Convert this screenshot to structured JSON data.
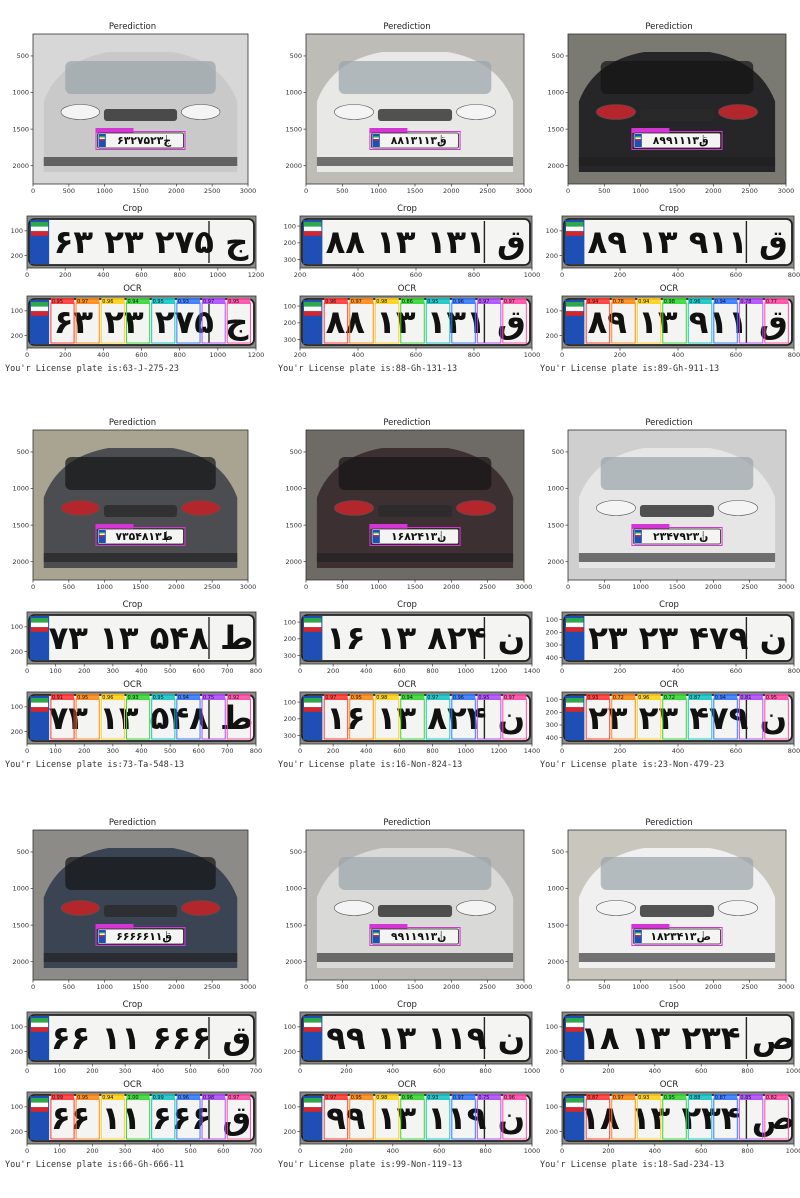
{
  "titles": {
    "prediction": "Perediction",
    "crop": "Crop",
    "ocr": "OCR"
  },
  "result_prefix": "You'r License plate is:",
  "plates": [
    {
      "result": "63-J-275-23",
      "car": "#c9c9c9",
      "bg": "#d7d7d7",
      "dark": false,
      "pred_text": "۶۳ج۲۷۵۲۳",
      "crop_text": "۶۳ ج ۲۷۵ ۲۳",
      "pred_xticks": [
        "0",
        "500",
        "1000",
        "1500",
        "2000",
        "2500",
        "3000"
      ],
      "pred_yticks": [
        "500",
        "1000",
        "1500",
        "2000"
      ],
      "crop_xticks": [
        "0",
        "200",
        "400",
        "600",
        "800",
        "1000",
        "1200"
      ],
      "crop_yticks": [
        "100",
        "200"
      ],
      "ocr_yticks": [
        "100",
        "200"
      ],
      "ocr_scores": [
        "0.95",
        "0.97",
        "0.96",
        "0.94",
        "0.95",
        "0.93",
        "0.97",
        "0.95"
      ]
    },
    {
      "result": "88-Gh-131-13",
      "car": "#e8e8e6",
      "bg": "#bdbcb6",
      "dark": false,
      "pred_text": "۸۸ق۱۳۱۱۳",
      "crop_text": "۸۸ ق ۱۳۱ ۱۳",
      "pred_xticks": [
        "0",
        "500",
        "1000",
        "1500",
        "2000",
        "2500",
        "3000"
      ],
      "pred_yticks": [
        "500",
        "1000",
        "1500",
        "2000"
      ],
      "crop_xticks": [
        "200",
        "400",
        "600",
        "800",
        "1000"
      ],
      "crop_yticks": [
        "100",
        "200",
        "300"
      ],
      "ocr_yticks": [
        "100",
        "200",
        "300"
      ],
      "ocr_scores": [
        "0.96",
        "0.97",
        "0.98",
        "0.86",
        "0.95",
        "0.96",
        "0.97",
        "0.97"
      ]
    },
    {
      "result": "89-Gh-911-13",
      "car": "#262628",
      "bg": "#7a7a72",
      "dark": true,
      "pred_text": "۸۹ق۹۱۱۱۳",
      "crop_text": "۸۹ ق ۹۱۱ ۱۳",
      "pred_xticks": [
        "0",
        "500",
        "1000",
        "1500",
        "2000",
        "2500",
        "3000"
      ],
      "pred_yticks": [
        "500",
        "1000",
        "1500",
        "2000"
      ],
      "crop_xticks": [
        "0",
        "200",
        "400",
        "600",
        "800"
      ],
      "crop_yticks": [
        "100",
        "200"
      ],
      "ocr_yticks": [
        "100",
        "200"
      ],
      "ocr_scores": [
        "0.94",
        "0.78",
        "0.94",
        "0.98",
        "0.96",
        "0.94",
        "0.78",
        "0.77"
      ]
    },
    {
      "result": "73-Ta-548-13",
      "car": "#4b4d50",
      "bg": "#a9a391",
      "dark": true,
      "pred_text": "۷۳ط۵۴۸۱۳",
      "crop_text": "۷۳ ط ۵۴۸ ۱۳",
      "pred_xticks": [
        "0",
        "500",
        "1000",
        "1500",
        "2000",
        "2500",
        "3000"
      ],
      "pred_yticks": [
        "500",
        "1000",
        "1500",
        "2000"
      ],
      "crop_xticks": [
        "0",
        "100",
        "200",
        "300",
        "400",
        "500",
        "600",
        "700",
        "800"
      ],
      "crop_yticks": [
        "100",
        "200"
      ],
      "ocr_yticks": [
        "100",
        "200"
      ],
      "ocr_scores": [
        "0.91",
        "0.95",
        "0.96",
        "0.93",
        "0.95",
        "0.94",
        "0.75",
        "0.92"
      ]
    },
    {
      "result": "16-Non-824-13",
      "car": "#3d3033",
      "bg": "#6e6a66",
      "dark": true,
      "pred_text": "۱۶ن۸۲۴۱۳",
      "crop_text": "۱۶ ن ۸۲۴ ۱۳",
      "pred_xticks": [
        "0",
        "500",
        "1000",
        "1500",
        "2000",
        "2500",
        "3000"
      ],
      "pred_yticks": [
        "500",
        "1000",
        "1500",
        "2000"
      ],
      "crop_xticks": [
        "0",
        "200",
        "400",
        "600",
        "800",
        "1000",
        "1200",
        "1400"
      ],
      "crop_yticks": [
        "100",
        "200",
        "300"
      ],
      "ocr_yticks": [
        "100",
        "200",
        "300"
      ],
      "ocr_scores": [
        "0.97",
        "0.95",
        "0.98",
        "0.94",
        "0.97",
        "0.96",
        "0.95",
        "0.97"
      ]
    },
    {
      "result": "23-Non-479-23",
      "car": "#e6e6e6",
      "bg": "#cfcfcf",
      "dark": false,
      "pred_text": "۲۳ن۴۷۹۲۳",
      "crop_text": "۲۳ ن ۴۷۹ ۲۳",
      "pred_xticks": [
        "0",
        "500",
        "1000",
        "1500",
        "2000",
        "2500",
        "3000"
      ],
      "pred_yticks": [
        "500",
        "1000",
        "1500",
        "2000"
      ],
      "crop_xticks": [
        "0",
        "200",
        "400",
        "600",
        "800"
      ],
      "crop_yticks": [
        "100",
        "200",
        "300",
        "400"
      ],
      "ocr_yticks": [
        "100",
        "200",
        "300",
        "400"
      ],
      "ocr_scores": [
        "0.93",
        "0.72",
        "0.96",
        "0.72",
        "0.87",
        "0.94",
        "0.81",
        "0.95"
      ]
    },
    {
      "result": "66-Gh-666-11",
      "car": "#3b4452",
      "bg": "#8d8b88",
      "dark": true,
      "pred_text": "۶۶ق۶۶۶۱۱",
      "crop_text": "۶۶ ق ۶۶۶ ۱۱",
      "pred_xticks": [
        "0",
        "500",
        "1000",
        "1500",
        "2000",
        "2500",
        "3000"
      ],
      "pred_yticks": [
        "500",
        "1000",
        "1500",
        "2000"
      ],
      "crop_xticks": [
        "0",
        "100",
        "200",
        "300",
        "400",
        "500",
        "600",
        "700"
      ],
      "crop_yticks": [
        "100",
        "200"
      ],
      "ocr_yticks": [
        "100",
        "200"
      ],
      "ocr_scores": [
        "0.99",
        "0.95",
        "0.94",
        "1.00",
        "0.99",
        "0.96",
        "0.98",
        "0.97"
      ]
    },
    {
      "result": "99-Non-119-13",
      "car": "#d9d9d7",
      "bg": "#b9b8b4",
      "dark": false,
      "pred_text": "۹۹ن۱۱۹۱۳",
      "crop_text": "۹۹ ن ۱۱۹ ۱۳",
      "pred_xticks": [
        "0",
        "500",
        "1000",
        "1500",
        "2000",
        "2500",
        "3000"
      ],
      "pred_yticks": [
        "500",
        "1000",
        "1500",
        "2000"
      ],
      "crop_xticks": [
        "0",
        "200",
        "400",
        "600",
        "800",
        "1000"
      ],
      "crop_yticks": [
        "100",
        "200"
      ],
      "ocr_yticks": [
        "100",
        "200"
      ],
      "ocr_scores": [
        "0.97",
        "0.95",
        "0.98",
        "0.96",
        "0.93",
        "0.97",
        "0.75",
        "0.96"
      ]
    },
    {
      "result": "18-Sad-234-13",
      "car": "#f0f0f0",
      "bg": "#c9c6bd",
      "dark": false,
      "pred_text": "۱۸ص۲۳۴۱۳",
      "crop_text": "۱۸ ص ۲۳۴ ۱۳",
      "pred_xticks": [
        "0",
        "500",
        "1000",
        "1500",
        "2000",
        "2500",
        "3000"
      ],
      "pred_yticks": [
        "500",
        "1000",
        "1500",
        "2000"
      ],
      "crop_xticks": [
        "0",
        "200",
        "400",
        "600",
        "800",
        "1000"
      ],
      "crop_yticks": [
        "100",
        "200"
      ],
      "ocr_yticks": [
        "100",
        "200"
      ],
      "ocr_scores": [
        "0.87",
        "0.97",
        "0.93",
        "0.95",
        "0.88",
        "0.87",
        "0.85",
        "0.82"
      ]
    }
  ]
}
